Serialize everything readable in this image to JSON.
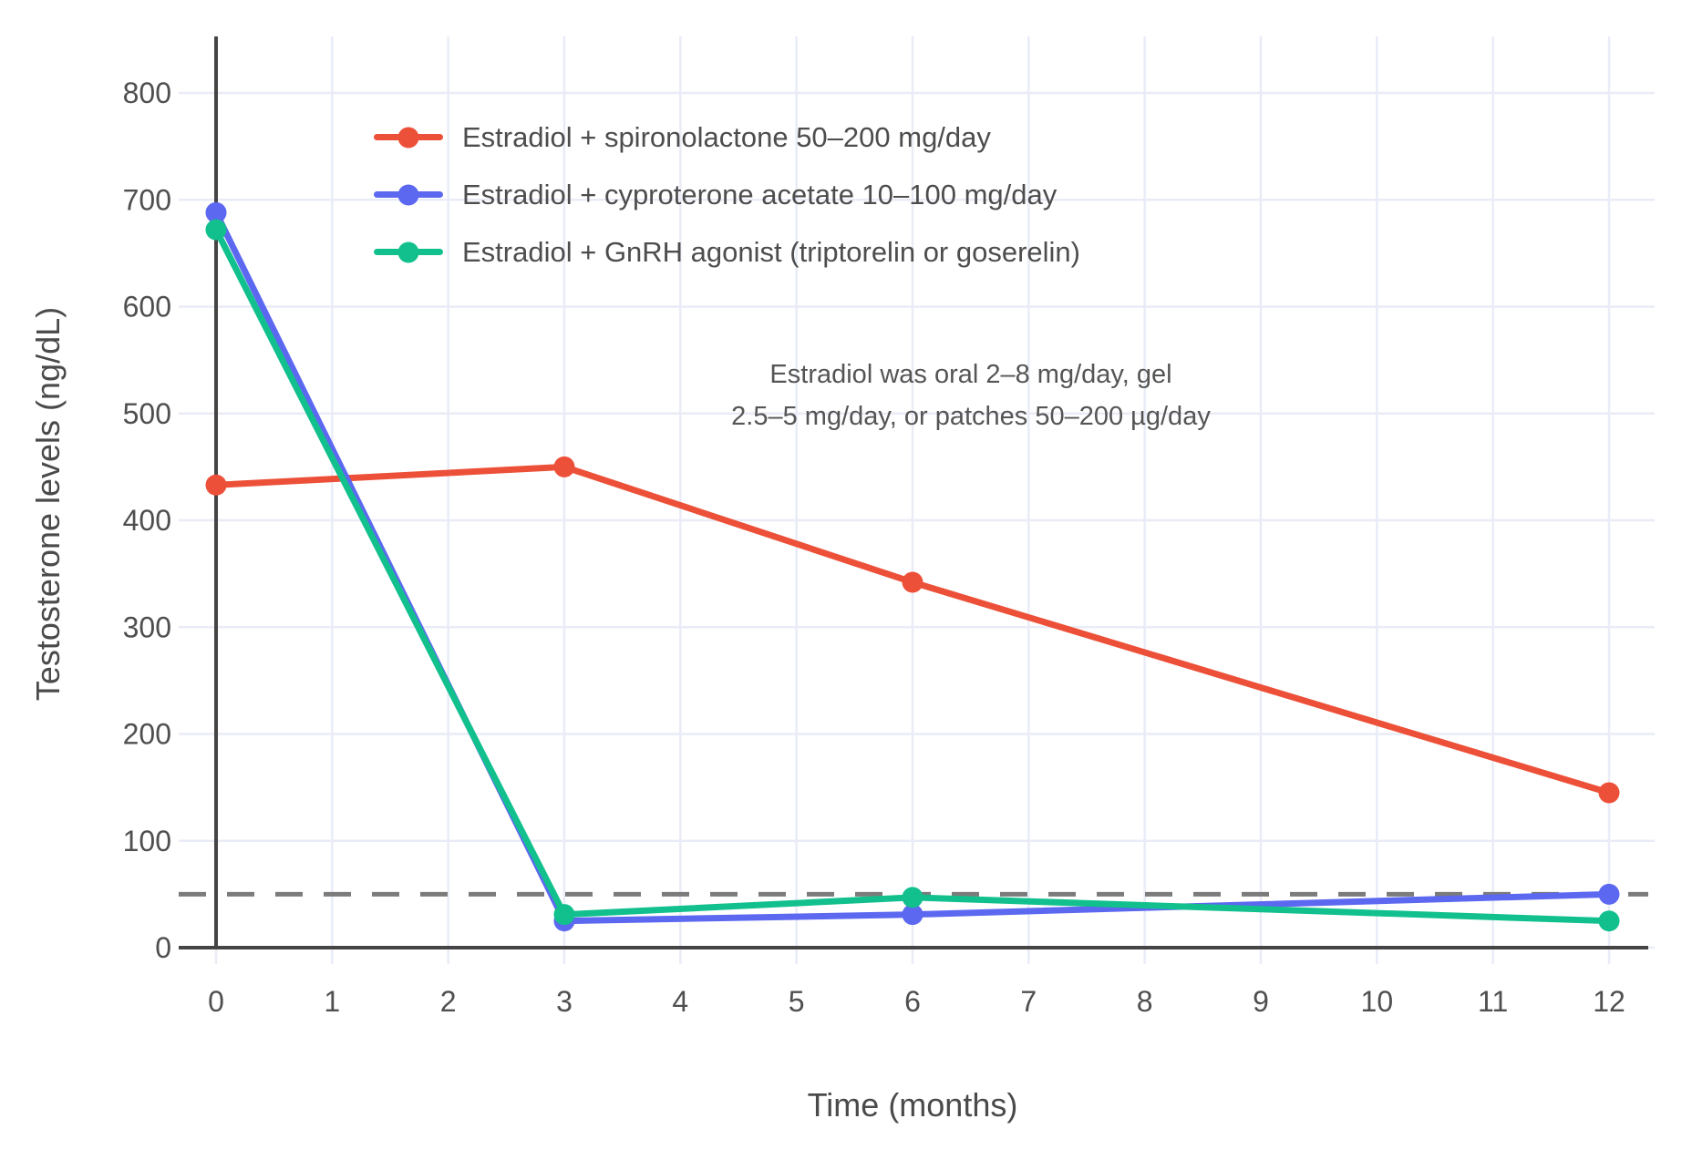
{
  "colors": {
    "background": "#ffffff",
    "grid": "#e9ecf7",
    "axis": "#454545",
    "tick_text": "#4f4f4f",
    "title_text": "#4a4a4a",
    "annotation_text": "#555555",
    "reference_line": "#7b7b7b"
  },
  "chart_data": {
    "type": "line",
    "title": "",
    "xlabel": "Time (months)",
    "ylabel": "Testosterone levels (ng/dL)",
    "x": [
      0,
      3,
      6,
      12
    ],
    "x_ticks": [
      0,
      1,
      2,
      3,
      4,
      5,
      6,
      7,
      8,
      9,
      10,
      11,
      12
    ],
    "y_ticks": [
      0,
      100,
      200,
      300,
      400,
      500,
      600,
      700,
      800
    ],
    "xlim": [
      0,
      12
    ],
    "ylim": [
      0,
      800
    ],
    "grid": true,
    "legend_position": "inside-top-left",
    "series": [
      {
        "name": "Estradiol + spironolactone 50–200 mg/day",
        "color": "#ed5038",
        "values": [
          433,
          450,
          342,
          145
        ]
      },
      {
        "name": "Estradiol + cyproterone acetate 10–100 mg/day",
        "color": "#5c68f0",
        "values": [
          688,
          25,
          31,
          50
        ]
      },
      {
        "name": "Estradiol + GnRH agonist (triptorelin or goserelin)",
        "color": "#12c08e",
        "values": [
          672,
          31,
          47,
          25
        ]
      }
    ],
    "reference_line": {
      "y": 50,
      "style": "dashed"
    },
    "annotation": {
      "line1": "Estradiol was oral 2–8 mg/day, gel",
      "line2": "2.5–5 mg/day, or patches 50–200 µg/day"
    }
  }
}
